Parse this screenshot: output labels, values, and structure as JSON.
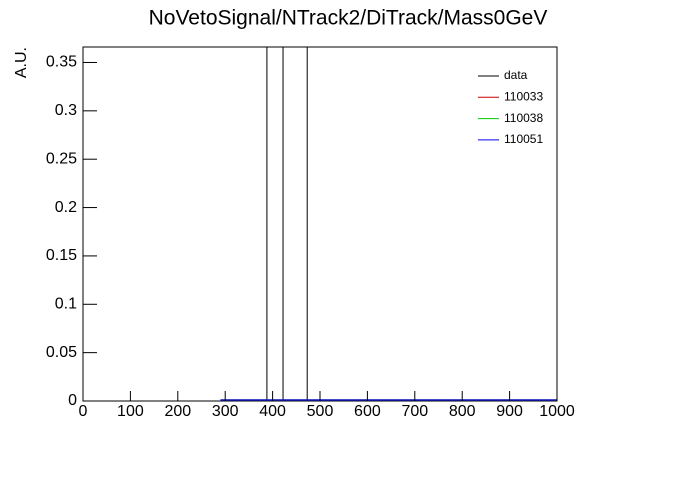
{
  "chart_data": {
    "type": "line",
    "title": "NoVetoSignal/NTrack2/DiTrack/Mass0GeV",
    "ylabel": "A.U.",
    "xlim": [
      0,
      1000
    ],
    "xticks": [
      0,
      100,
      200,
      300,
      400,
      500,
      600,
      700,
      800,
      900,
      1000
    ],
    "ylim": [
      0,
      0.366
    ],
    "yticks": [
      0,
      0.05,
      0.1,
      0.15,
      0.2,
      0.25,
      0.3,
      0.35
    ],
    "series": [
      {
        "name": "data",
        "color": "#000000",
        "style": "spikes",
        "x": [
          388,
          422,
          473
        ],
        "values": [
          0.37,
          0.37,
          0.37
        ]
      },
      {
        "name": "110033",
        "color": "#cc0000",
        "style": "line",
        "x": [
          290,
          1000
        ],
        "values": [
          0.001,
          0.001
        ]
      },
      {
        "name": "110038",
        "color": "#00cc00",
        "style": "line",
        "x": [
          290,
          1000
        ],
        "values": [
          0.001,
          0.001
        ]
      },
      {
        "name": "110051",
        "color": "#0000ee",
        "style": "line",
        "x": [
          290,
          1000
        ],
        "values": [
          0.001,
          0.001
        ]
      }
    ]
  }
}
